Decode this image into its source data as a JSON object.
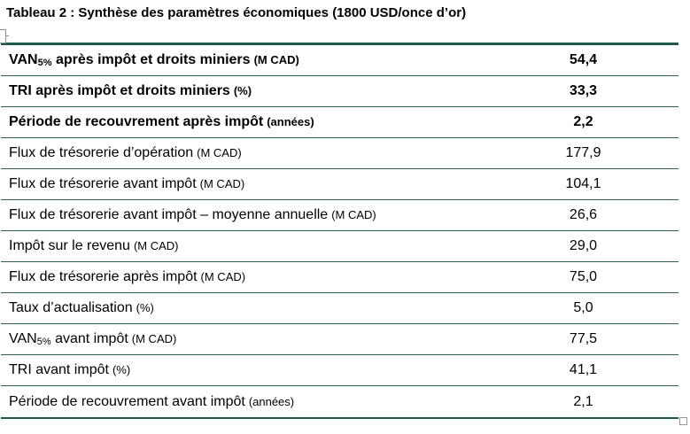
{
  "title": "Tableau 2 : Synthèse des paramètres économiques (1800 USD/once d’or)",
  "colors": {
    "border_strong": "#1e5a4b",
    "border_thin": "#2c5e50",
    "text": "#000000"
  },
  "table": {
    "rows": [
      {
        "pre": "VAN",
        "sub": "5%",
        "post": " après impôt et droits miniers",
        "unit": "(M CAD)",
        "value": "54,4"
      },
      {
        "pre": "TRI après impôt et droits miniers",
        "sub": "",
        "post": "",
        "unit": "(%)",
        "value": "33,3"
      },
      {
        "pre": "Période de recouvrement après impôt",
        "sub": "",
        "post": "",
        "unit": "(années)",
        "value": "2,2"
      },
      {
        "pre": "Flux de trésorerie d’opération",
        "sub": "",
        "post": "",
        "unit": "(M CAD)",
        "value": "177,9"
      },
      {
        "pre": "Flux de trésorerie avant impôt",
        "sub": "",
        "post": "",
        "unit": "(M CAD)",
        "value": "104,1"
      },
      {
        "pre": "Flux de trésorerie avant impôt – moyenne annuelle",
        "sub": "",
        "post": "",
        "unit": "(M CAD)",
        "value": "26,6"
      },
      {
        "pre": "Impôt sur le revenu",
        "sub": "",
        "post": "",
        "unit": "(M CAD)",
        "value": "29,0"
      },
      {
        "pre": "Flux de trésorerie après impôt",
        "sub": "",
        "post": "",
        "unit": "(M CAD)",
        "value": "75,0"
      },
      {
        "pre": "Taux d’actualisation",
        "sub": "",
        "post": "",
        "unit": "(%)",
        "value": "5,0"
      },
      {
        "pre": "VAN",
        "sub": "5%",
        "post": " avant impôt",
        "unit": "(M CAD)",
        "value": "77,5"
      },
      {
        "pre": "TRI avant impôt",
        "sub": "",
        "post": "",
        "unit": "(%)",
        "value": "41,1"
      },
      {
        "pre": "Période de recouvrement avant impôt",
        "sub": "",
        "post": "",
        "unit": "(années)",
        "value": "2,1"
      }
    ]
  }
}
